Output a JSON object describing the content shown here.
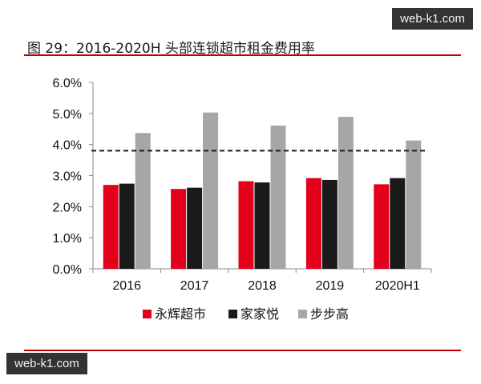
{
  "watermark": "web-k1.com",
  "chart_data": {
    "type": "bar",
    "title": "图 29：2016-2020H 头部连锁超市租金费用率",
    "categories": [
      "2016",
      "2017",
      "2018",
      "2019",
      "2020H1"
    ],
    "series": [
      {
        "name": "永辉超市",
        "color": "#e4001b",
        "values": [
          2.7,
          2.57,
          2.82,
          2.92,
          2.72
        ]
      },
      {
        "name": "家家悦",
        "color": "#1a1a1a",
        "values": [
          2.74,
          2.61,
          2.78,
          2.86,
          2.92
        ]
      },
      {
        "name": "步步高",
        "color": "#a6a6a6",
        "values": [
          4.37,
          5.03,
          4.61,
          4.89,
          4.13
        ]
      }
    ],
    "ylim": [
      0,
      6
    ],
    "yticks": [
      "0.0%",
      "1.0%",
      "2.0%",
      "3.0%",
      "4.0%",
      "5.0%",
      "6.0%"
    ],
    "reference_line": {
      "value": 3.8,
      "style": "dashed"
    },
    "legend_position": "bottom",
    "grid": false
  }
}
